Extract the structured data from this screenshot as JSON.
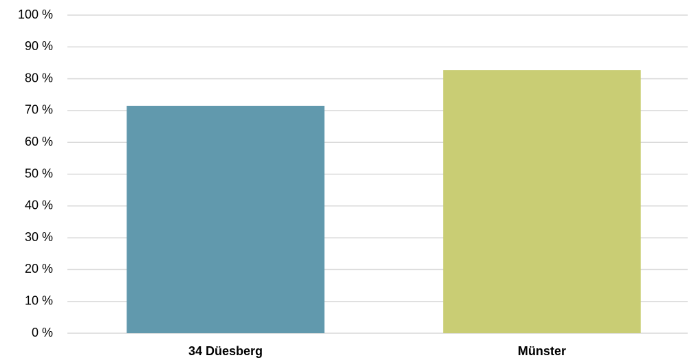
{
  "chart_data": {
    "type": "bar",
    "categories": [
      "34 Düesberg",
      "Münster"
    ],
    "values": [
      71.5,
      82.7
    ],
    "colors": [
      "#6199ad",
      "#c9cd74"
    ],
    "ylim": [
      0,
      100
    ],
    "yticks": [
      {
        "value": 0,
        "label": "0 %"
      },
      {
        "value": 10,
        "label": "10 %"
      },
      {
        "value": 20,
        "label": "20 %"
      },
      {
        "value": 30,
        "label": "30 %"
      },
      {
        "value": 40,
        "label": "40 %"
      },
      {
        "value": 50,
        "label": "50 %"
      },
      {
        "value": 60,
        "label": "60 %"
      },
      {
        "value": 70,
        "label": "70 %"
      },
      {
        "value": 80,
        "label": "80 %"
      },
      {
        "value": 90,
        "label": "90 %"
      },
      {
        "value": 100,
        "label": "100 %"
      }
    ],
    "grid": true
  }
}
